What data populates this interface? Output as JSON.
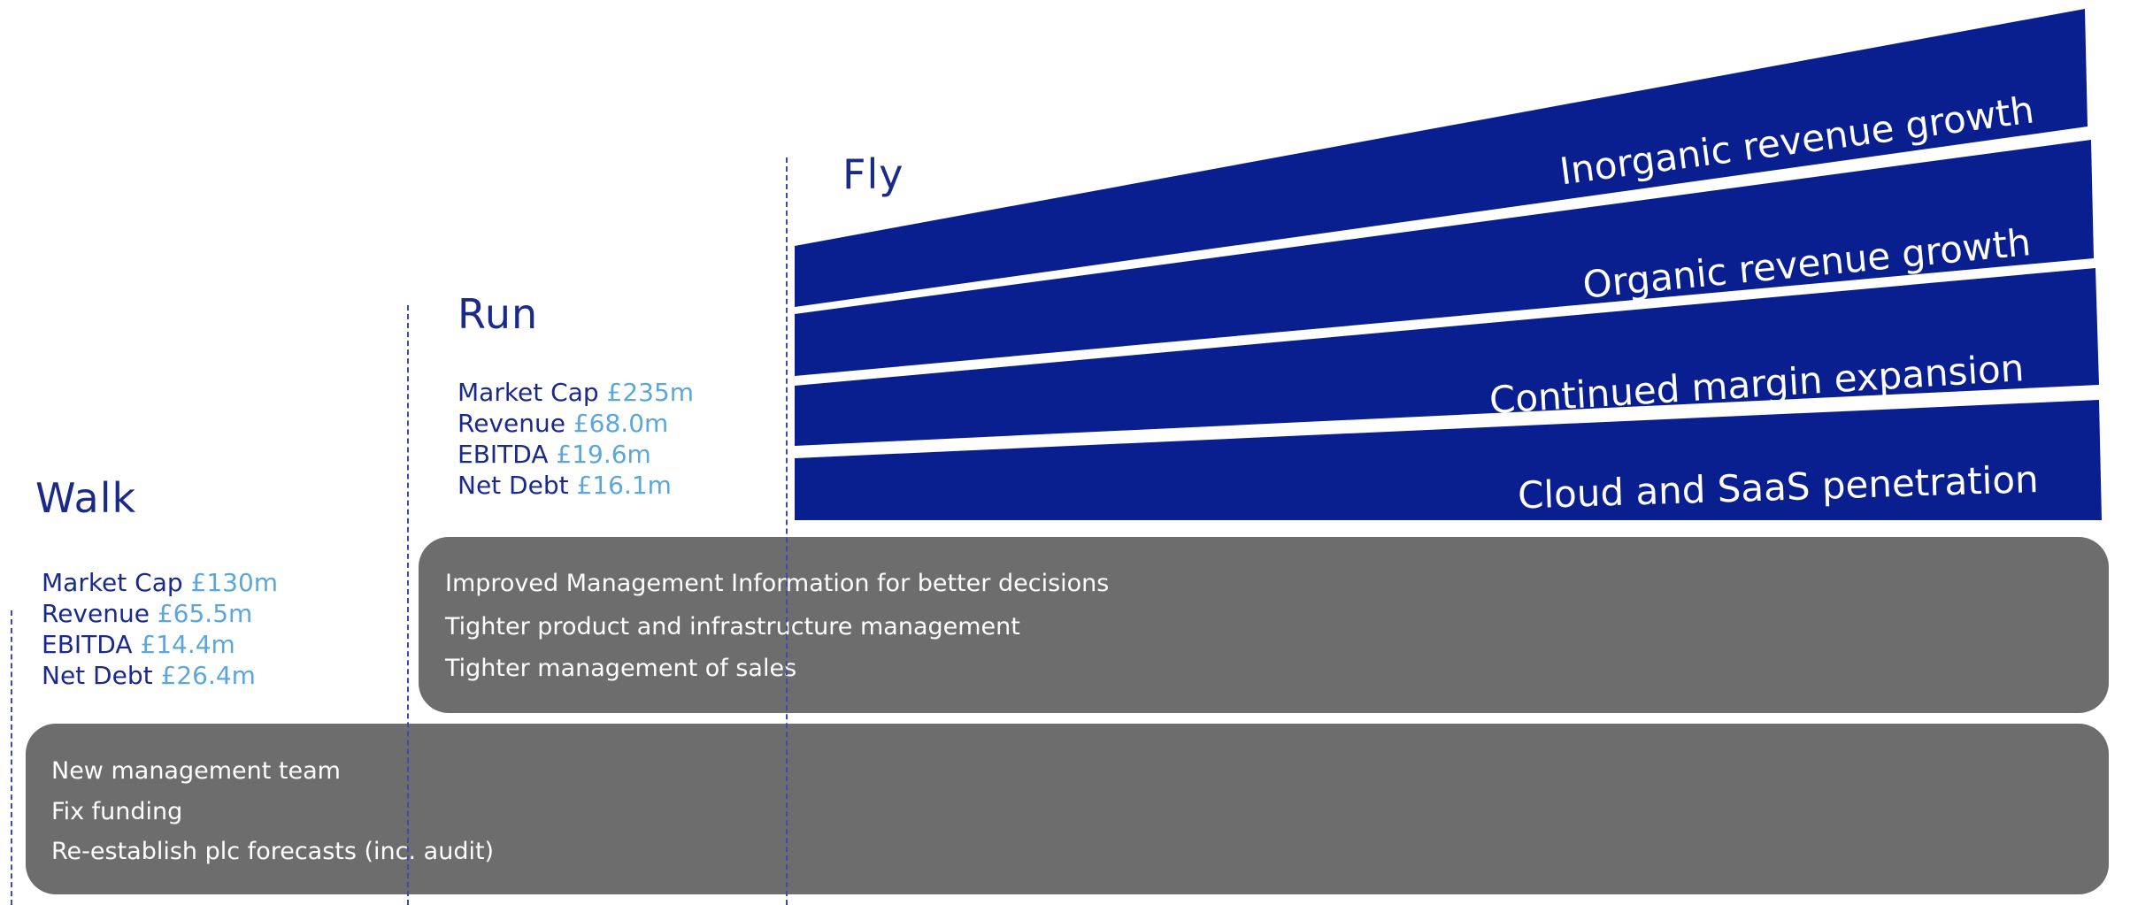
{
  "stages": {
    "walk": {
      "title": "Walk",
      "metrics": [
        {
          "label": "Market Cap",
          "value": "£130m"
        },
        {
          "label": "Revenue",
          "value": "£65.5m"
        },
        {
          "label": "EBITDA",
          "value": "£14.4m"
        },
        {
          "label": "Net Debt",
          "value": "£26.4m"
        }
      ]
    },
    "run": {
      "title": "Run",
      "metrics": [
        {
          "label": "Market Cap",
          "value": "£235m"
        },
        {
          "label": "Revenue",
          "value": "£68.0m"
        },
        {
          "label": "EBITDA",
          "value": "£19.6m"
        },
        {
          "label": "Net Debt",
          "value": "£16.1m"
        }
      ]
    },
    "fly": {
      "title": "Fly"
    }
  },
  "panels": {
    "run_panel": {
      "items": [
        "Improved Management Information for better decisions",
        "Tighter product and infrastructure management",
        "Tighter management of sales"
      ]
    },
    "walk_panel": {
      "items": [
        "New management team",
        "Fix funding",
        "Re-establish plc forecasts (inc. audit)"
      ]
    }
  },
  "bands": [
    {
      "label": "Inorganic revenue growth"
    },
    {
      "label": "Organic revenue growth"
    },
    {
      "label": "Continued margin expansion"
    },
    {
      "label": "Cloud and SaaS penetration"
    }
  ],
  "colors": {
    "band_fill": "#0a1f8f",
    "panel_fill": "#6d6d6d",
    "title_text": "#1a2a8a",
    "value_text": "#5ba7dc"
  }
}
